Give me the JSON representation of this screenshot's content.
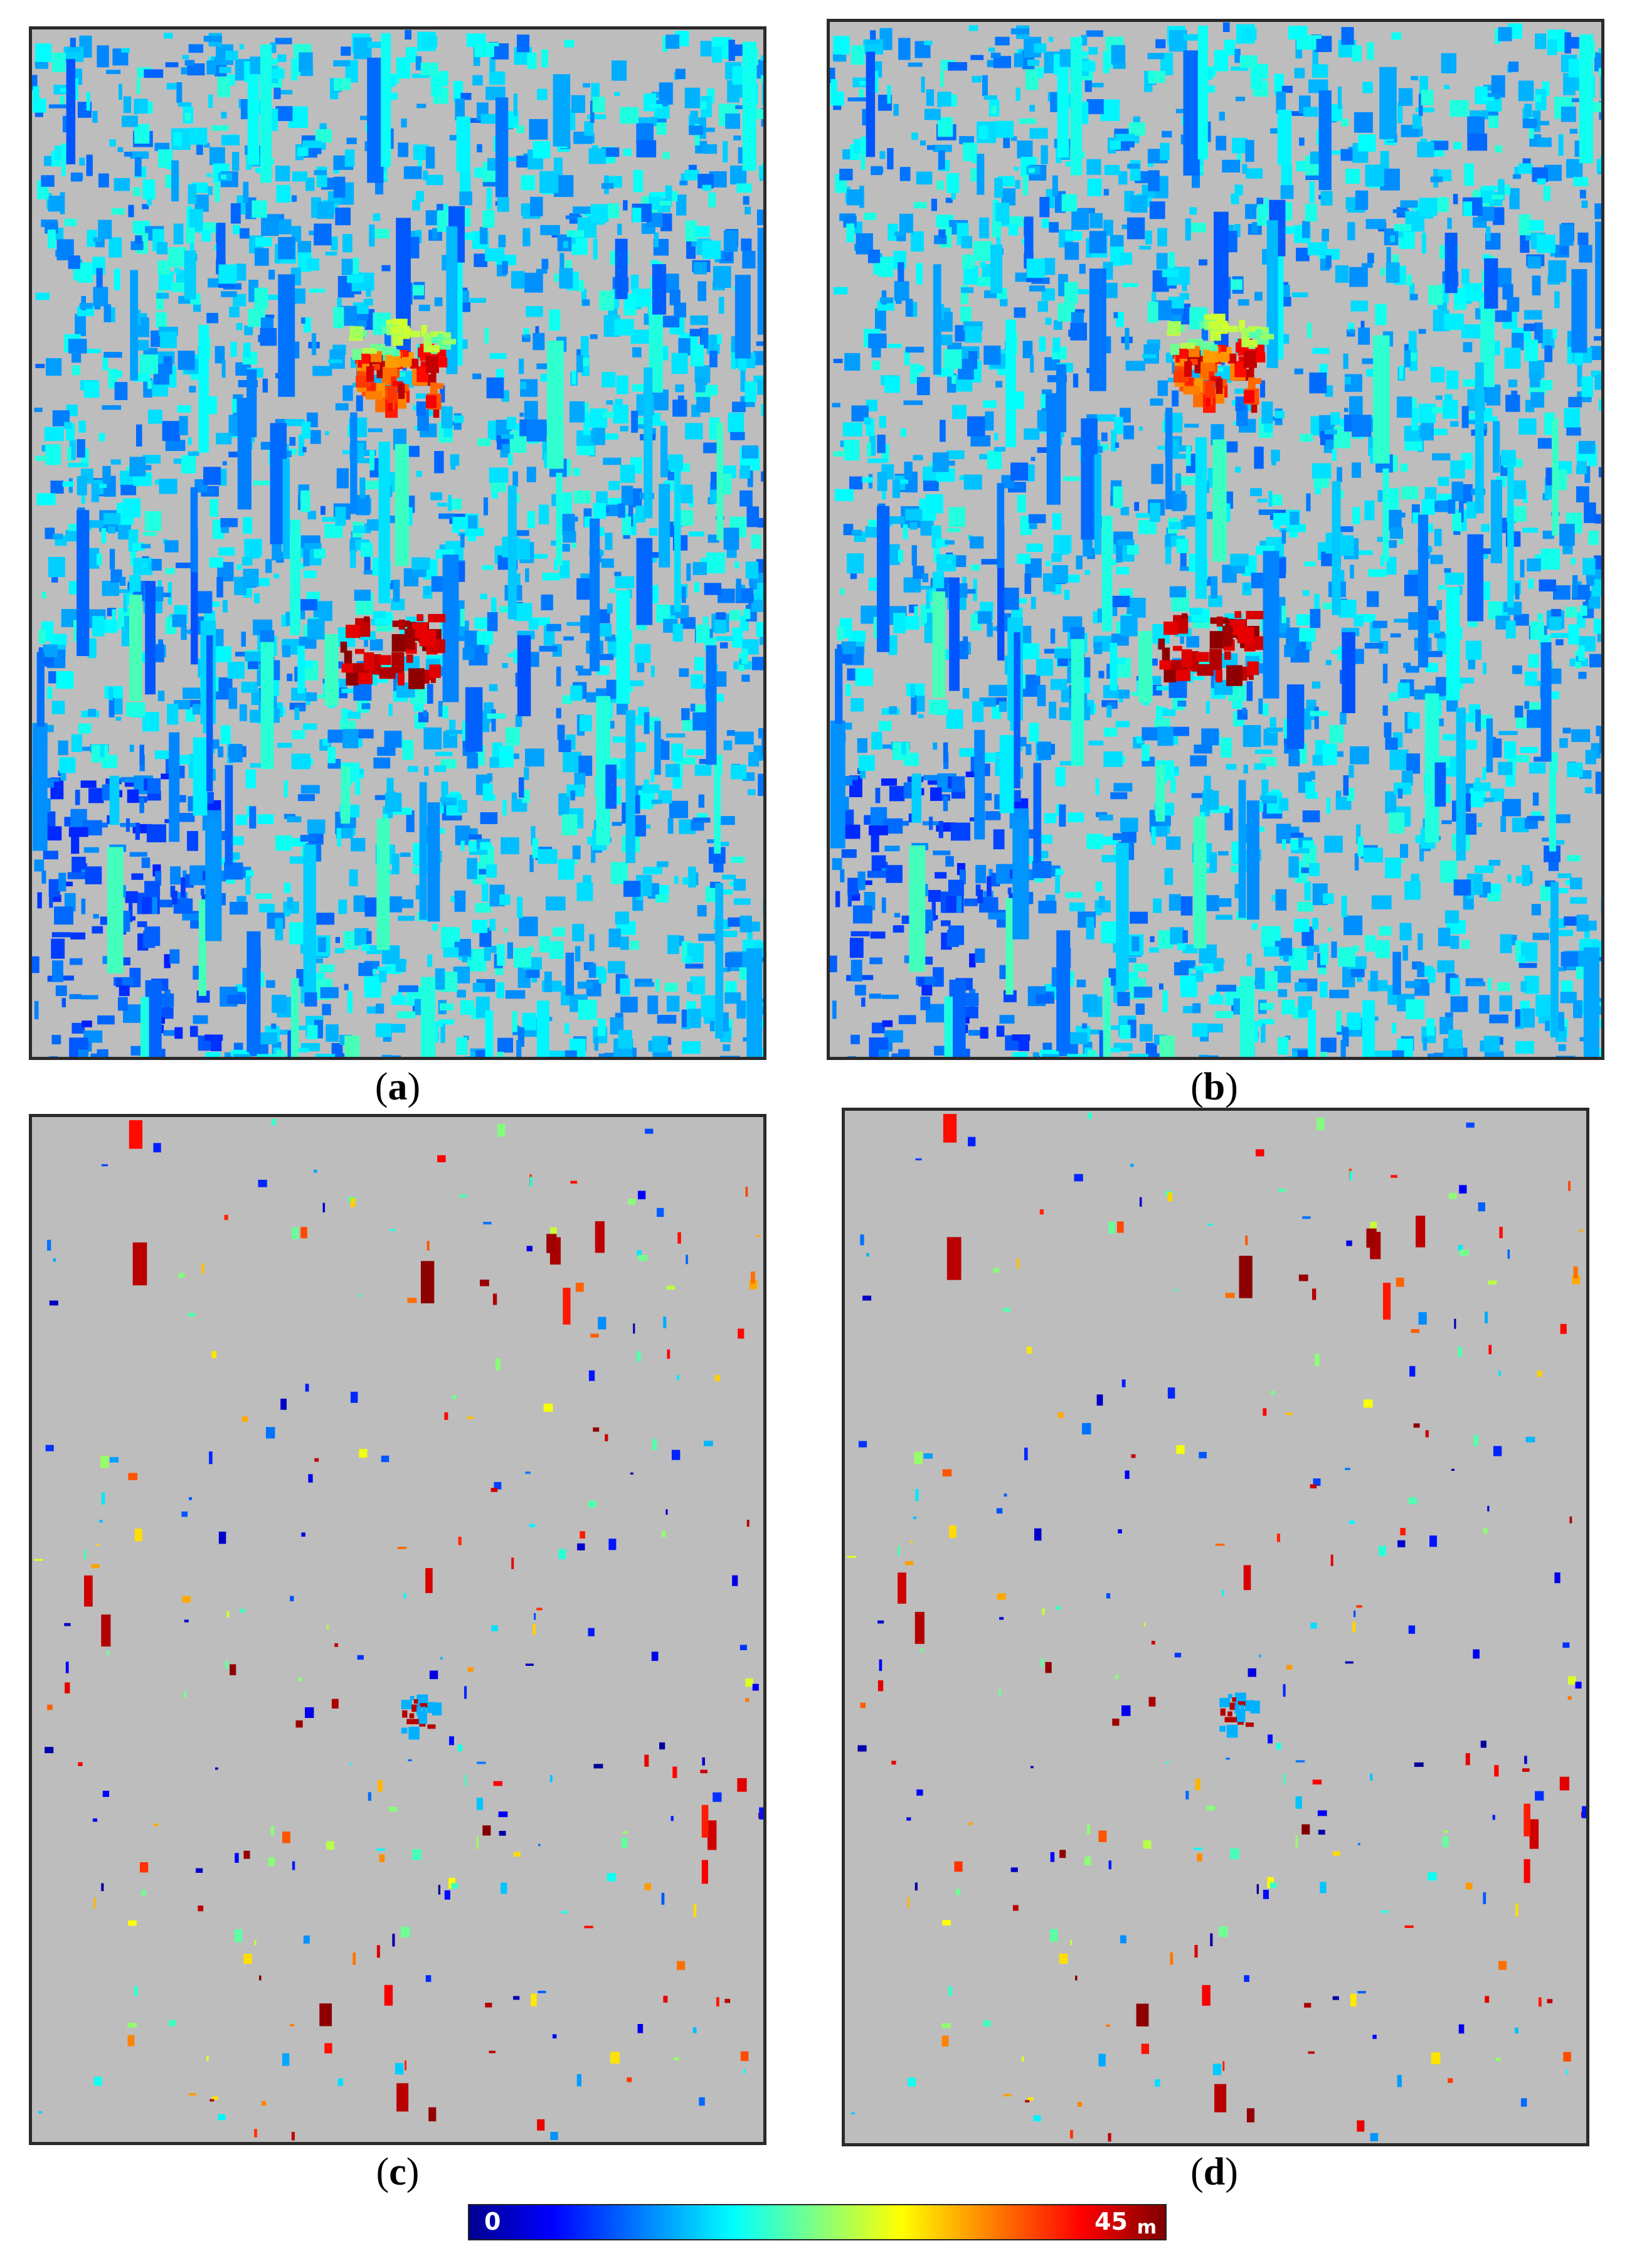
{
  "panels": [
    {
      "id": "a",
      "label": "a",
      "style": "dense"
    },
    {
      "id": "b",
      "label": "b",
      "style": "dense"
    },
    {
      "id": "c",
      "label": "c",
      "style": "sparse"
    },
    {
      "id": "d",
      "label": "d",
      "style": "sparse"
    }
  ],
  "colorbar": {
    "min_label": "0",
    "max_label": "45",
    "unit": "m",
    "colormap": "jet"
  },
  "colors": {
    "background": "#bdbdbd",
    "frame": "#2a2a2a"
  }
}
